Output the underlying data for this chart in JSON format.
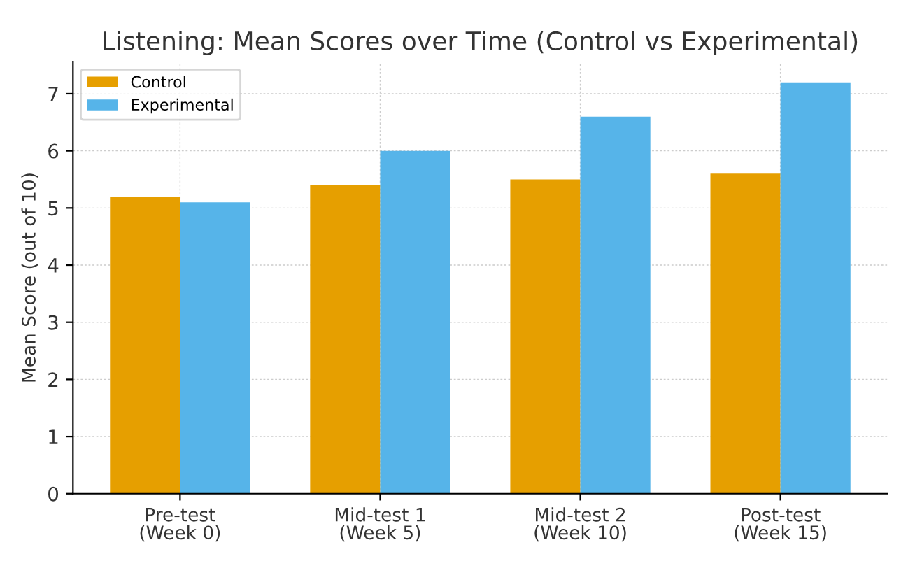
{
  "chart_data": {
    "type": "bar",
    "title": "Listening: Mean Scores over Time (Control vs Experimental)",
    "ylabel": "Mean Score (out of 10)",
    "categories": [
      "Pre-test\n(Week 0)",
      "Mid-test 1\n(Week 5)",
      "Mid-test 2\n(Week 10)",
      "Post-test\n(Week 15)"
    ],
    "series": [
      {
        "name": "Control",
        "color": "#e69f00",
        "values": [
          5.2,
          5.4,
          5.5,
          5.6
        ]
      },
      {
        "name": "Experimental",
        "color": "#56b4e9",
        "values": [
          5.1,
          6.0,
          6.6,
          7.2
        ]
      }
    ],
    "ylim": [
      0,
      7.56
    ],
    "yticks": [
      0,
      1,
      2,
      3,
      4,
      5,
      6,
      7
    ],
    "grid": true,
    "legend": "top left"
  }
}
